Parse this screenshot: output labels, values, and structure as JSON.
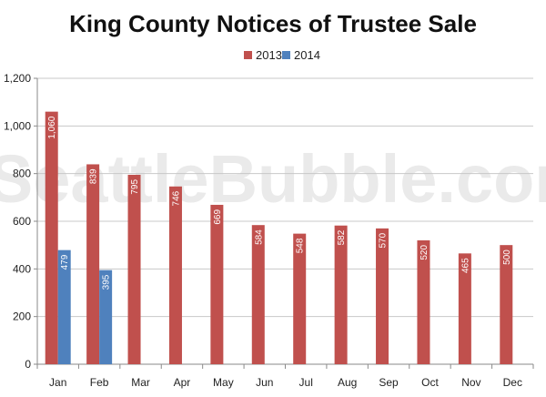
{
  "watermark": "SeattleBubble.com",
  "chart_data": {
    "type": "bar",
    "title": "King County Notices of Trustee Sale",
    "xlabel": "",
    "ylabel": "",
    "categories": [
      "Jan",
      "Feb",
      "Mar",
      "Apr",
      "May",
      "Jun",
      "Jul",
      "Aug",
      "Sep",
      "Oct",
      "Nov",
      "Dec"
    ],
    "series": [
      {
        "name": "2013",
        "color": "#c0504d",
        "values": [
          1060,
          839,
          795,
          746,
          669,
          584,
          548,
          582,
          570,
          520,
          465,
          500
        ],
        "labels": [
          "1,060",
          "839",
          "795",
          "746",
          "669",
          "584",
          "548",
          "582",
          "570",
          "520",
          "465",
          "500"
        ]
      },
      {
        "name": "2014",
        "color": "#4f81bd",
        "values": [
          479,
          395,
          null,
          null,
          null,
          null,
          null,
          null,
          null,
          null,
          null,
          null
        ],
        "labels": [
          "479",
          "395",
          "",
          "",
          "",
          "",
          "",
          "",
          "",
          "",
          "",
          ""
        ]
      }
    ],
    "ylim": [
      0,
      1200
    ],
    "yticks": [
      0,
      200,
      400,
      600,
      800,
      1000,
      1200
    ],
    "ytick_labels": [
      "0",
      "200",
      "400",
      "600",
      "800",
      "1,000",
      "1,200"
    ],
    "grid": true,
    "legend": "top-center"
  }
}
